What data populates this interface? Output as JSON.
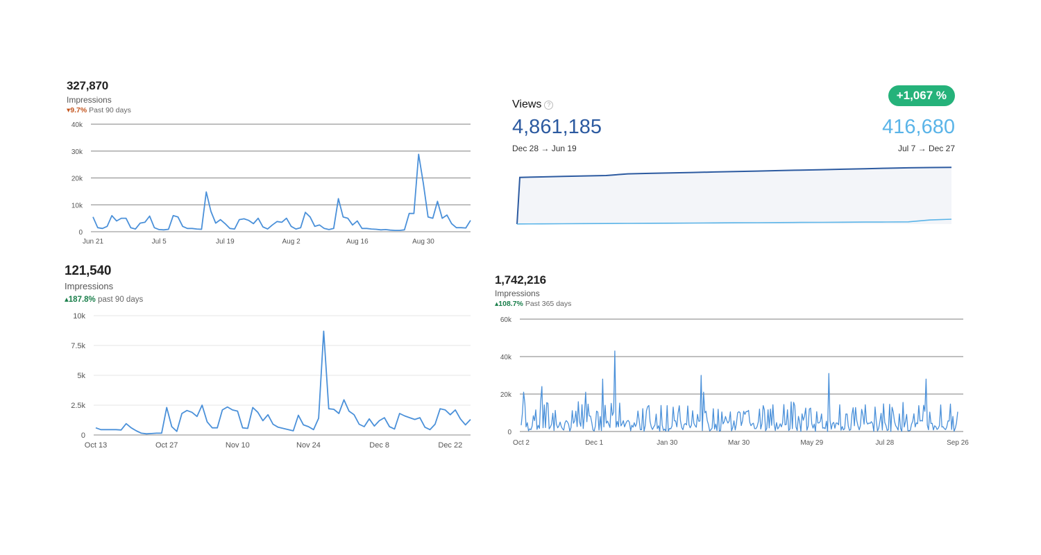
{
  "panels": {
    "p1": {
      "total": "327,870",
      "metric": "Impressions",
      "delta_arrow": "▾",
      "delta": "9.7%",
      "period": "Past 90 days"
    },
    "p2": {
      "title": "Views",
      "help_icon": "?",
      "badge": "+1,067 %",
      "value_left": "4,861,185",
      "value_right": "416,680",
      "range_left": "Dec 28 → Jun 19",
      "range_right": "Jul 7 → Dec 27",
      "colors": {
        "left": "#2c5aa0",
        "right": "#5ab4e8",
        "badge": "#25b27a"
      }
    },
    "p3": {
      "total": "121,540",
      "metric": "Impressions",
      "delta_arrow": "▴",
      "delta": "187.8%",
      "period": "past 90 days"
    },
    "p4": {
      "total": "1,742,216",
      "metric": "Impressions",
      "delta_arrow": "▴",
      "delta": "108.7%",
      "period": "Past 365 days"
    }
  },
  "chart_data": [
    {
      "type": "line",
      "ylim": [
        0,
        40000
      ],
      "yticks": [
        0,
        10000,
        20000,
        30000,
        40000
      ],
      "ytick_labels": [
        "0",
        "10k",
        "20k",
        "30k",
        "40k"
      ],
      "xtick_labels": [
        "Jun 21",
        "Jul 5",
        "Jul 19",
        "Aug 2",
        "Aug 16",
        "Aug 30"
      ],
      "xtick_index": [
        0,
        14,
        28,
        42,
        56,
        70
      ],
      "grid": true,
      "color": "#4a90d9",
      "series": [
        {
          "values": [
            5500,
            1500,
            1200,
            2000,
            6000,
            4000,
            5000,
            5000,
            1500,
            1000,
            3200,
            3500,
            5800,
            1500,
            800,
            700,
            900,
            6000,
            5500,
            2000,
            1200,
            1200,
            1000,
            900,
            14800,
            7500,
            3200,
            4500,
            3000,
            1200,
            1000,
            4500,
            4800,
            4200,
            3000,
            5000,
            1800,
            1000,
            2500,
            3800,
            3500,
            5000,
            2000,
            1000,
            1500,
            7200,
            5500,
            2000,
            2500,
            1200,
            800,
            1200,
            12300,
            5500,
            5000,
            2500,
            4000,
            1200,
            1200,
            1000,
            900,
            700,
            800,
            600,
            500,
            500,
            700,
            6800,
            6800,
            28800,
            18000,
            5500,
            5000,
            11300,
            5000,
            6200,
            3000,
            1500,
            1500,
            1400,
            4200
          ]
        }
      ]
    },
    {
      "type": "area",
      "series": [
        {
          "name": "4,861,185",
          "range": "Dec 28 → Jun 19",
          "color": "#2c5aa0",
          "cumulative": [
            0,
            4000000,
            4040000,
            4080000,
            4120000,
            4160000,
            4300000,
            4340000,
            4380000,
            4420000,
            4460000,
            4500000,
            4540000,
            4580000,
            4620000,
            4660000,
            4700000,
            4740000,
            4780000,
            4820000,
            4840000,
            4861185
          ]
        },
        {
          "name": "416,680",
          "range": "Jul 7 → Dec 27",
          "color": "#5ab4e8",
          "cumulative": [
            0,
            10000,
            20000,
            30000,
            40000,
            50000,
            60000,
            70000,
            80000,
            90000,
            100000,
            110000,
            120000,
            130000,
            140000,
            150000,
            160000,
            170000,
            180000,
            190000,
            350000,
            416680
          ]
        }
      ]
    },
    {
      "type": "line",
      "ylim": [
        0,
        10000
      ],
      "yticks": [
        0,
        2500,
        5000,
        7500,
        10000
      ],
      "ytick_labels": [
        "0",
        "2.5k",
        "5k",
        "7.5k",
        "10k"
      ],
      "xtick_labels": [
        "Oct 13",
        "Oct 27",
        "Nov 10",
        "Nov 24",
        "Dec 8",
        "Dec 22"
      ],
      "xtick_index": [
        0,
        14,
        28,
        42,
        56,
        70
      ],
      "grid": true,
      "color": "#4a90d9",
      "series": [
        {
          "values": [
            600,
            450,
            450,
            450,
            450,
            420,
            950,
            600,
            350,
            150,
            100,
            120,
            150,
            150,
            2300,
            700,
            300,
            1800,
            2050,
            1900,
            1550,
            2500,
            1100,
            600,
            600,
            2100,
            2350,
            2100,
            2000,
            600,
            550,
            2300,
            1900,
            1200,
            1700,
            900,
            650,
            550,
            450,
            350,
            1650,
            850,
            700,
            450,
            1400,
            8700,
            2200,
            2150,
            1800,
            2950,
            2000,
            1700,
            900,
            700,
            1350,
            750,
            1200,
            1450,
            700,
            500,
            1800,
            1600,
            1450,
            1300,
            1450,
            650,
            450,
            900,
            2200,
            2100,
            1700,
            2100,
            1350,
            850,
            1300
          ]
        }
      ]
    },
    {
      "type": "line",
      "ylim": [
        0,
        60000
      ],
      "yticks": [
        0,
        20000,
        40000,
        60000
      ],
      "ytick_labels": [
        "0",
        "20k",
        "40k",
        "60k"
      ],
      "xtick_labels": [
        "Oct 2",
        "Dec 1",
        "Jan 30",
        "Mar 30",
        "May 29",
        "Jul 28",
        "Sep 26"
      ],
      "xtick_index": [
        0,
        60,
        120,
        179,
        239,
        299,
        359
      ],
      "spikes": [
        {
          "x": 2,
          "v": 21000
        },
        {
          "x": 17,
          "v": 24000
        },
        {
          "x": 53,
          "v": 21000
        },
        {
          "x": 67,
          "v": 28000
        },
        {
          "x": 77,
          "v": 43000
        },
        {
          "x": 148,
          "v": 30000
        },
        {
          "x": 150,
          "v": 21000
        },
        {
          "x": 253,
          "v": 31000
        },
        {
          "x": 333,
          "v": 28000
        }
      ],
      "grid": true,
      "color": "#4a90d9",
      "series": [
        {
          "points": 360,
          "min": 0,
          "max": 43000,
          "typical": [
            2000,
            15000
          ]
        }
      ]
    }
  ]
}
